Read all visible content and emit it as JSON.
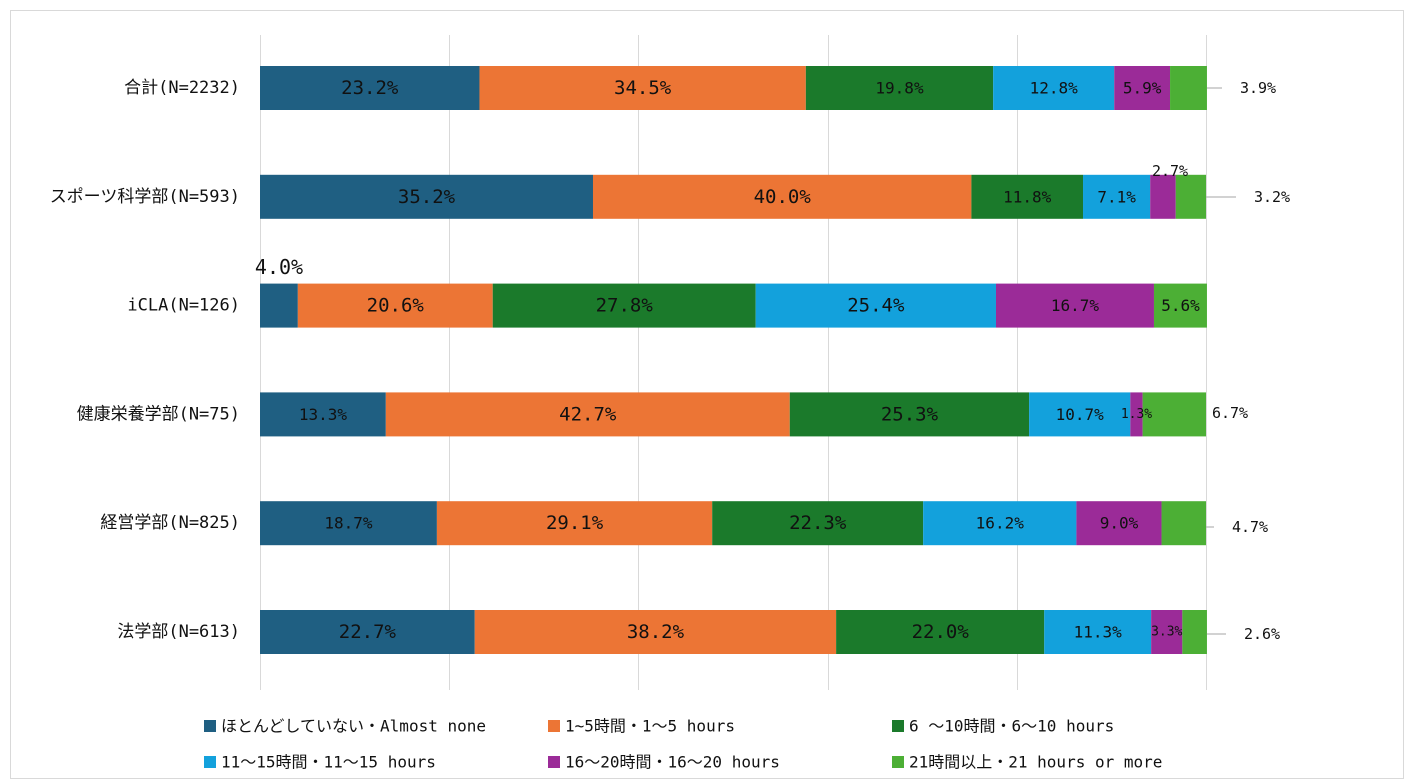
{
  "chart_data": {
    "type": "bar",
    "orientation": "horizontal",
    "stacked": "percent",
    "title": "",
    "xlabel": "",
    "ylabel": "",
    "xlim": [
      0,
      100
    ],
    "grid": true,
    "legend_position": "bottom",
    "categories": [
      "合計(N=2232)",
      "スポーツ科学部(N=593)",
      "iCLA(N=126)",
      "健康栄養学部(N=75)",
      "経営学部(N=825)",
      "法学部(N=613)"
    ],
    "series": [
      {
        "name": "ほとんどしていない・Almost none",
        "color": "#1f5f82",
        "values": [
          23.2,
          35.2,
          4.0,
          13.3,
          18.7,
          22.7
        ]
      },
      {
        "name": "1~5時間・1～5 hours",
        "color": "#ec7535",
        "values": [
          34.5,
          40.0,
          20.6,
          42.7,
          29.1,
          38.2
        ]
      },
      {
        "name": "6 ～10時間・6～10 hours",
        "color": "#1b7a2b",
        "values": [
          19.8,
          11.8,
          27.8,
          25.3,
          22.3,
          22.0
        ]
      },
      {
        "name": "11～15時間・11～15 hours",
        "color": "#13a1dc",
        "values": [
          12.8,
          7.1,
          25.4,
          10.7,
          16.2,
          11.3
        ]
      },
      {
        "name": "16～20時間・16～20 hours",
        "color": "#9b2b98",
        "values": [
          5.9,
          2.7,
          16.7,
          1.3,
          9.0,
          3.3
        ]
      },
      {
        "name": "21時間以上・21 hours or more",
        "color": "#4caf35",
        "values": [
          3.9,
          3.2,
          5.6,
          6.7,
          4.7,
          2.6
        ]
      }
    ],
    "data_labels": [
      [
        "23.2%",
        "34.5%",
        "19.8%",
        "12.8%",
        "5.9%",
        "3.9%"
      ],
      [
        "35.2%",
        "40.0%",
        "11.8%",
        "7.1%",
        "2.7%",
        "3.2%"
      ],
      [
        "4.0%",
        "20.6%",
        "27.8%",
        "25.4%",
        "16.7%",
        "5.6%"
      ],
      [
        "13.3%",
        "42.7%",
        "25.3%",
        "10.7%",
        "1.3%",
        "6.7%"
      ],
      [
        "18.7%",
        "29.1%",
        "22.3%",
        "16.2%",
        "9.0%",
        "4.7%"
      ],
      [
        "22.7%",
        "38.2%",
        "22.0%",
        "11.3%",
        "3.3%",
        "2.6%"
      ]
    ]
  }
}
